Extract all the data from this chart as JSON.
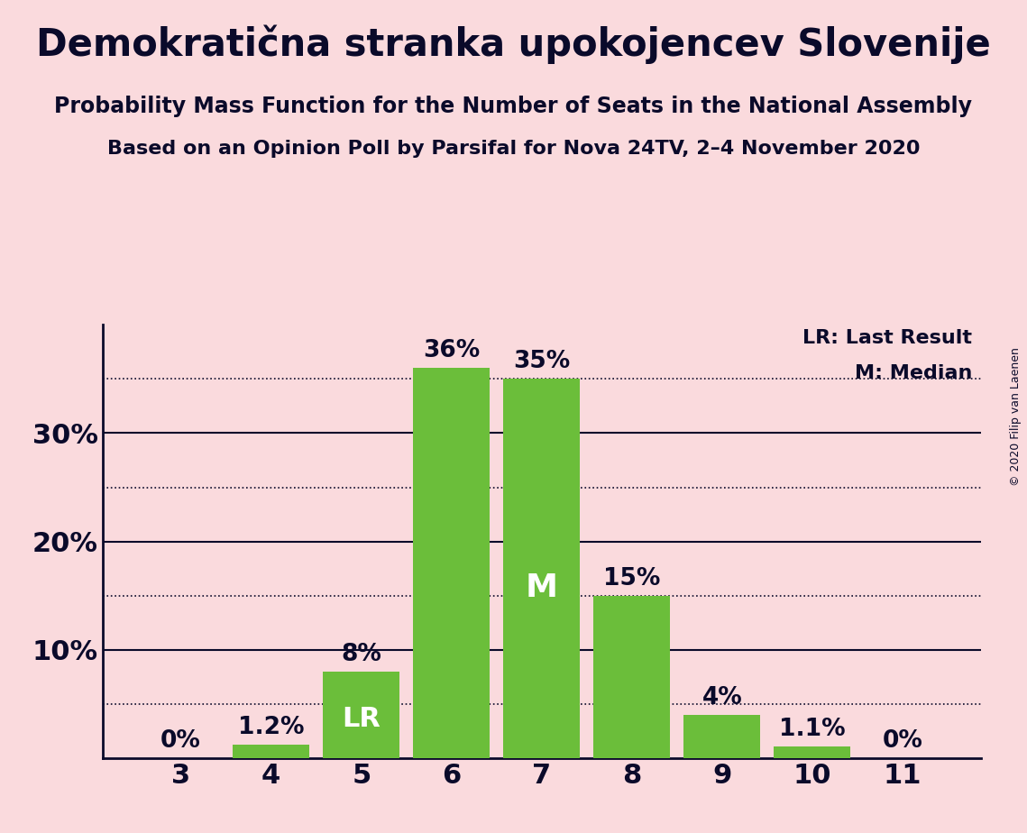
{
  "title": "Demokratična stranka upokojencev Slovenije",
  "subtitle1": "Probability Mass Function for the Number of Seats in the National Assembly",
  "subtitle2": "Based on an Opinion Poll by Parsifal for Nova 24TV, 2–4 November 2020",
  "copyright": "© 2020 Filip van Laenen",
  "categories": [
    3,
    4,
    5,
    6,
    7,
    8,
    9,
    10,
    11
  ],
  "values": [
    0.0,
    1.2,
    8.0,
    36.0,
    35.0,
    15.0,
    4.0,
    1.1,
    0.0
  ],
  "bar_color": "#6BBE3A",
  "background_color": "#FADADD",
  "text_color": "#0A0A2A",
  "bar_labels": [
    "0%",
    "1.2%",
    "8%",
    "36%",
    "35%",
    "15%",
    "4%",
    "1.1%",
    "0%"
  ],
  "lr_bar_index": 2,
  "median_bar_index": 4,
  "lr_label": "LR",
  "median_label": "M",
  "legend_lr": "LR: Last Result",
  "legend_m": "M: Median",
  "yticks": [
    0,
    10,
    20,
    30
  ],
  "ytick_labels": [
    "",
    "10%",
    "20%",
    "30%"
  ],
  "solid_lines": [
    10,
    20,
    30
  ],
  "dotted_lines": [
    5,
    15,
    25,
    35
  ],
  "ylim": [
    0,
    40
  ],
  "title_fontsize": 30,
  "subtitle1_fontsize": 17,
  "subtitle2_fontsize": 16,
  "ytick_fontsize": 22,
  "xtick_fontsize": 22,
  "bar_label_fontsize": 19,
  "lr_fontsize": 22,
  "median_fontsize": 26,
  "legend_fontsize": 16,
  "copyright_fontsize": 9
}
